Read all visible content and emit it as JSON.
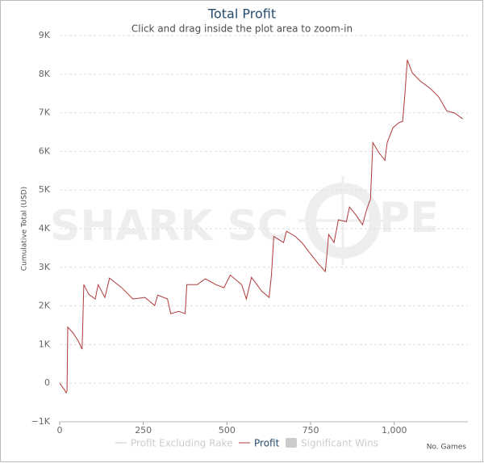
{
  "chart_data": {
    "type": "line",
    "title": "Total Profit",
    "subtitle": "Click and drag inside the plot area to zoom-in",
    "y_label": "Cumulative Total (USD)",
    "x_label": "No. Games",
    "watermark": [
      "SHARK SC",
      "PE"
    ],
    "x": [
      0,
      14,
      19,
      22,
      24,
      40,
      55,
      67,
      72,
      87,
      106,
      115,
      135,
      149,
      183,
      219,
      255,
      284,
      293,
      322,
      332,
      356,
      375,
      380,
      411,
      435,
      467,
      491,
      510,
      544,
      558,
      573,
      604,
      626,
      633,
      640,
      669,
      678,
      703,
      724,
      751,
      777,
      794,
      804,
      820,
      833,
      857,
      866,
      886,
      905,
      917,
      929,
      936,
      953,
      972,
      979,
      996,
      1013,
      1025,
      1032,
      1039,
      1054,
      1078,
      1109,
      1133,
      1157,
      1181,
      1205
    ],
    "series": [
      {
        "name": "Profit",
        "color": "#b03a3a",
        "values": [
          0,
          -170,
          -250,
          -200,
          1450,
          1300,
          1100,
          880,
          2550,
          2300,
          2180,
          2550,
          2220,
          2720,
          2490,
          2180,
          2220,
          2010,
          2280,
          2180,
          1800,
          1860,
          1800,
          2550,
          2550,
          2700,
          2550,
          2470,
          2800,
          2550,
          2180,
          2740,
          2380,
          2220,
          2800,
          3800,
          3640,
          3930,
          3810,
          3640,
          3330,
          3050,
          2890,
          3850,
          3640,
          4230,
          4180,
          4560,
          4350,
          4100,
          4480,
          4770,
          6230,
          5980,
          5770,
          6230,
          6610,
          6740,
          6780,
          7490,
          8370,
          8030,
          7820,
          7620,
          7410,
          7050,
          6990,
          6840
        ]
      }
    ],
    "legend_inactive": [
      {
        "name": "Profit Excluding Rake",
        "symbol": "line"
      },
      {
        "name": "Significant Wins",
        "symbol": "box"
      }
    ],
    "inactive_color": "#cccccc",
    "xlim": [
      0,
      1220
    ],
    "xticks": [
      0,
      250,
      500,
      750,
      {
        "value": 1000,
        "label": "1,000"
      }
    ],
    "ylim": [
      -1000,
      9000
    ],
    "yticks": [
      {
        "value": -1000,
        "label": "−1K"
      },
      0,
      {
        "value": 1000,
        "label": "1K"
      },
      {
        "value": 2000,
        "label": "2K"
      },
      {
        "value": 3000,
        "label": "3K"
      },
      {
        "value": 4000,
        "label": "4K"
      },
      {
        "value": 5000,
        "label": "5K"
      },
      {
        "value": 6000,
        "label": "6K"
      },
      {
        "value": 7000,
        "label": "7K"
      },
      {
        "value": 8000,
        "label": "8K"
      },
      {
        "value": 9000,
        "label": "9K"
      }
    ],
    "grid": true
  }
}
